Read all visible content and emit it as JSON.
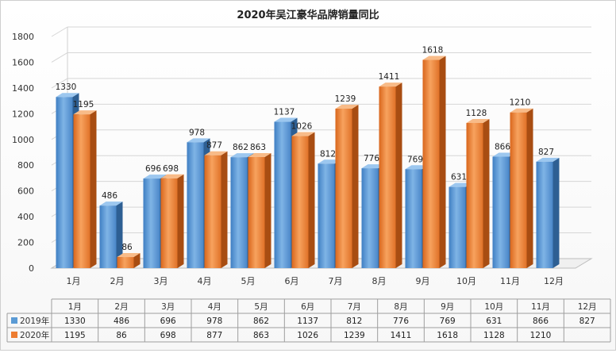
{
  "chart_data": {
    "type": "bar",
    "title": "2020年吴江豪华品牌销量同比",
    "categories": [
      "1月",
      "2月",
      "3月",
      "4月",
      "5月",
      "6月",
      "7月",
      "8月",
      "9月",
      "10月",
      "11月",
      "12月"
    ],
    "series": [
      {
        "name": "2019年",
        "values": [
          1330,
          486,
          696,
          978,
          862,
          1137,
          812,
          776,
          769,
          631,
          866,
          827
        ],
        "color": "#5b9bd5"
      },
      {
        "name": "2020年",
        "values": [
          1195,
          86,
          698,
          877,
          863,
          1026,
          1239,
          1411,
          1618,
          1128,
          1210,
          null
        ],
        "color": "#ed7d31"
      }
    ],
    "y_ticks": [
      0,
      200,
      400,
      600,
      800,
      1000,
      1200,
      1400,
      1600,
      1800
    ],
    "ylim": [
      0,
      1800
    ],
    "grid": true,
    "legend": "data-table"
  }
}
